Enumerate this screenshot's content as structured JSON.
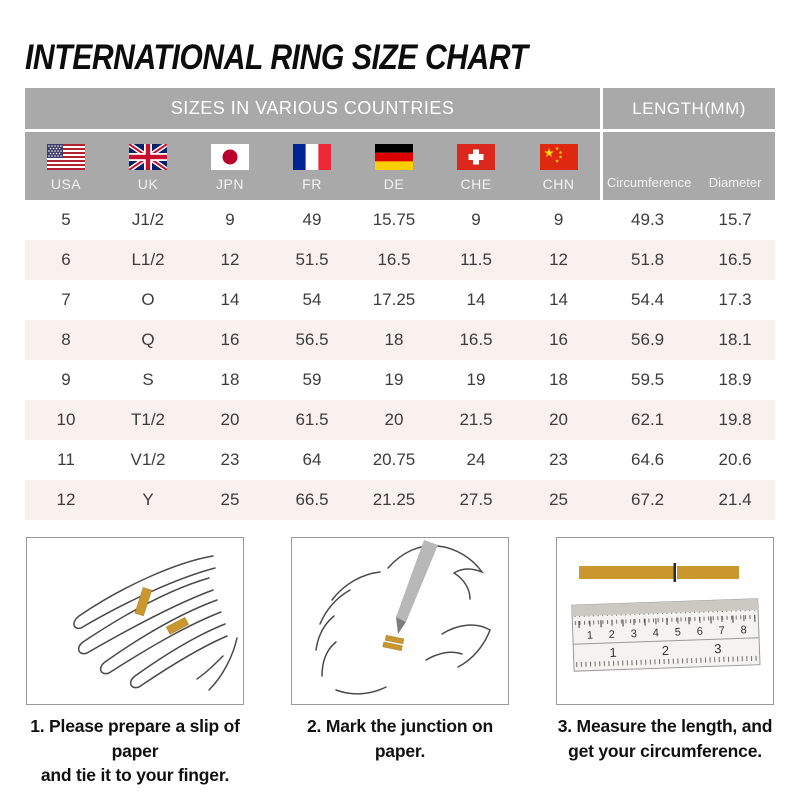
{
  "title": "INTERNATIONAL RING SIZE CHART",
  "colors": {
    "header_gray": "#a9a9a9",
    "row_alt_pink": "#f8f1ee",
    "paper_strip_gold": "#c9972e"
  },
  "table": {
    "group_headers": {
      "countries": "SIZES IN VARIOUS COUNTRIES",
      "length": "LENGTH(MM)"
    },
    "columns": [
      {
        "code": "USA",
        "icon": "usa-flag-icon"
      },
      {
        "code": "UK",
        "icon": "uk-flag-icon"
      },
      {
        "code": "JPN",
        "icon": "japan-flag-icon"
      },
      {
        "code": "FR",
        "icon": "france-flag-icon"
      },
      {
        "code": "DE",
        "icon": "germany-flag-icon"
      },
      {
        "code": "CHE",
        "icon": "switzerland-flag-icon"
      },
      {
        "code": "CHN",
        "icon": "china-flag-icon"
      }
    ],
    "length_columns": [
      "Circumference",
      "Diameter"
    ],
    "rows": [
      [
        "5",
        "J1/2",
        "9",
        "49",
        "15.75",
        "9",
        "9",
        "49.3",
        "15.7"
      ],
      [
        "6",
        "L1/2",
        "12",
        "51.5",
        "16.5",
        "11.5",
        "12",
        "51.8",
        "16.5"
      ],
      [
        "7",
        "O",
        "14",
        "54",
        "17.25",
        "14",
        "14",
        "54.4",
        "17.3"
      ],
      [
        "8",
        "Q",
        "16",
        "56.5",
        "18",
        "16.5",
        "16",
        "56.9",
        "18.1"
      ],
      [
        "9",
        "S",
        "18",
        "59",
        "19",
        "19",
        "18",
        "59.5",
        "18.9"
      ],
      [
        "10",
        "T1/2",
        "20",
        "61.5",
        "20",
        "21.5",
        "20",
        "62.1",
        "19.8"
      ],
      [
        "11",
        "V1/2",
        "23",
        "64",
        "20.75",
        "24",
        "23",
        "64.6",
        "20.6"
      ],
      [
        "12",
        "Y",
        "25",
        "66.5",
        "21.25",
        "27.5",
        "25",
        "67.2",
        "21.4"
      ]
    ]
  },
  "steps": [
    {
      "illustration": "hand-with-paper-strip",
      "lines": [
        "1. Please prepare a slip of paper",
        "and tie it to your finger."
      ]
    },
    {
      "illustration": "mark-junction-with-pen",
      "lines": [
        "2. Mark the junction on paper."
      ]
    },
    {
      "illustration": "ruler-measuring-strip",
      "lines": [
        "3. Measure the length, and",
        "get your circumference."
      ],
      "ruler_scale_cm": "1 2 3 4 5 6 7 8",
      "ruler_scale_inch": "1 2 3"
    }
  ]
}
